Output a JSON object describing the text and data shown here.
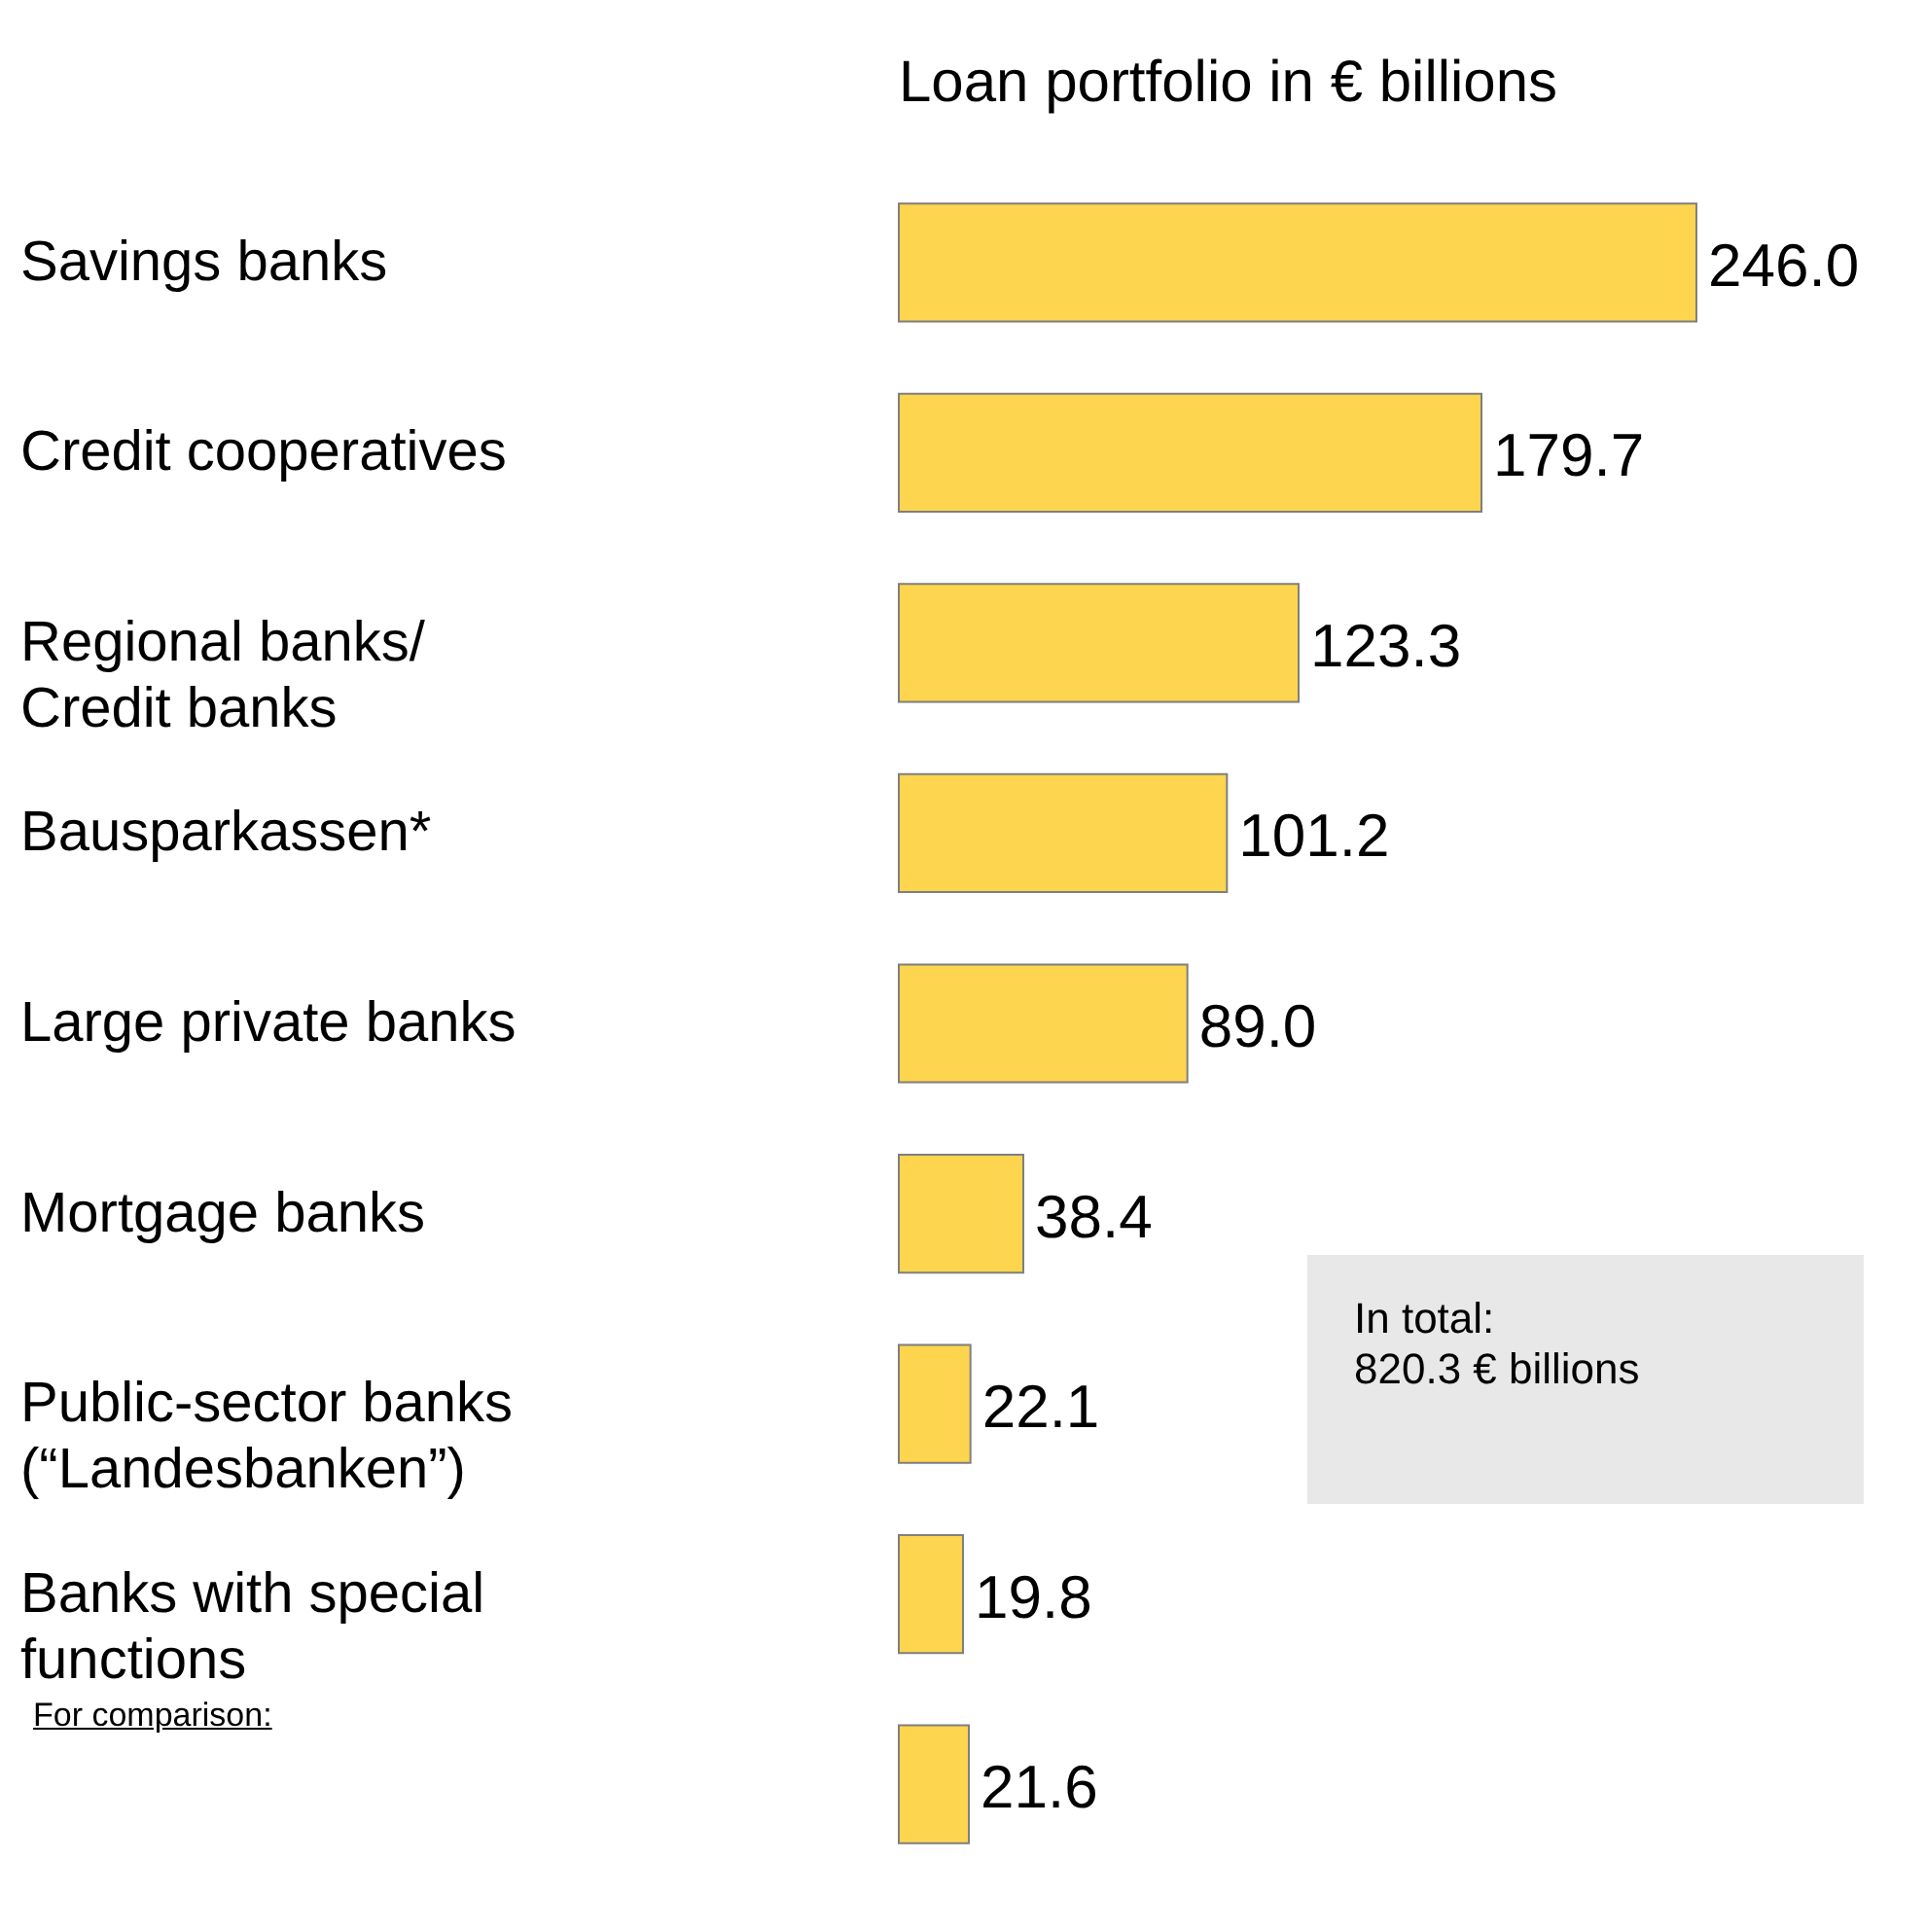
{
  "chart_data": {
    "type": "bar",
    "orientation": "horizontal",
    "title": "Loan portfolio in € billions",
    "categories": [
      "Savings banks",
      "Credit cooperatives",
      "Regional banks/\nCredit banks",
      "Bausparkassen*",
      "Large private banks",
      "Mortgage banks",
      "Public-sector banks\n(“Landesbanken”)",
      "Banks with special\nfunctions",
      null
    ],
    "values": [
      246.0,
      179.7,
      123.3,
      101.2,
      89.0,
      38.4,
      22.1,
      19.8,
      21.6
    ],
    "value_labels": [
      "246.0",
      "179.7",
      "123.3",
      "101.2",
      "89.0",
      "38.4",
      "22.1",
      "19.8",
      "21.6"
    ],
    "color": "#fdd54e",
    "annotations": [
      "In total:\n820.3 € billions",
      "For comparison:"
    ]
  }
}
